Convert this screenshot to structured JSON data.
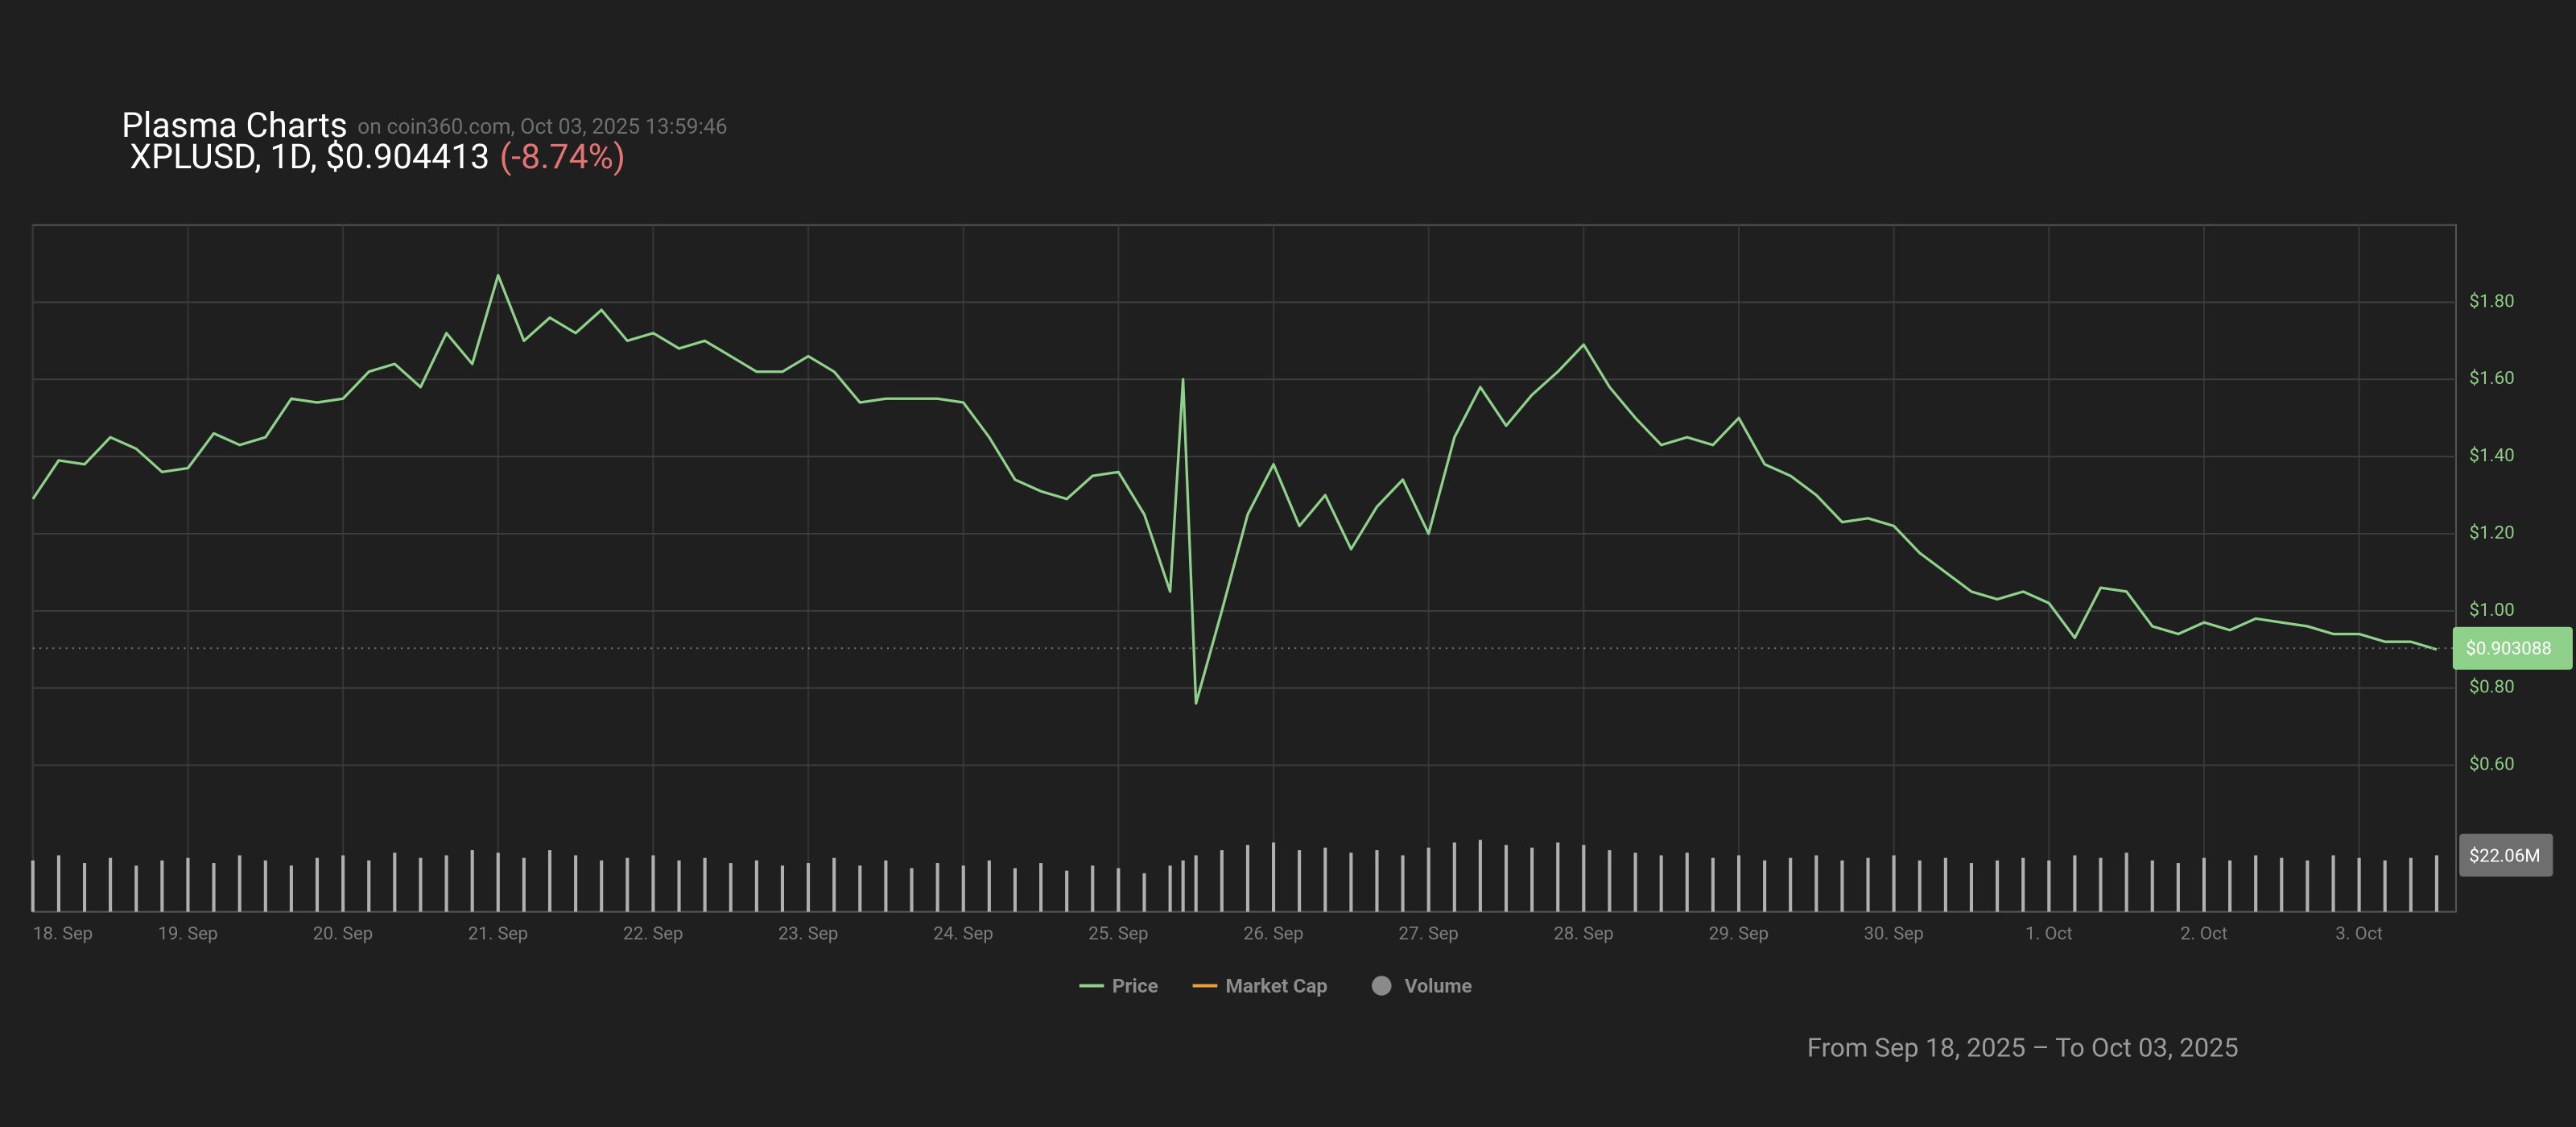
{
  "chart_data": {
    "type": "line",
    "title": "Plasma Charts",
    "source": "on coin360.com, Oct 03, 2025 13:59:46",
    "subtitle": "XPLUSD, 1D, $0.904413",
    "change": "(-8.74%)",
    "footer": "From Sep 18, 2025 – To Oct 03, 2025",
    "x": [
      0,
      4,
      8,
      12,
      16,
      20,
      24,
      28,
      32,
      36,
      40,
      44,
      48,
      52,
      56,
      60,
      64,
      68,
      72,
      76,
      80,
      84,
      88,
      92,
      96,
      100,
      104,
      108,
      112,
      116,
      120,
      124,
      128,
      132,
      136,
      140,
      144,
      148,
      152,
      156,
      160,
      164,
      168,
      172,
      176,
      178,
      180,
      184,
      188,
      192,
      196,
      200,
      204,
      208,
      212,
      216,
      220,
      224,
      228,
      232,
      236,
      240,
      244,
      248,
      252,
      256,
      260,
      264,
      268,
      272,
      276,
      280,
      284,
      288,
      292,
      296,
      300,
      304,
      308,
      312,
      316,
      320,
      324,
      328,
      332,
      336,
      340,
      344,
      348,
      352,
      356,
      360,
      364,
      368,
      372
    ],
    "xlim": [
      0,
      375
    ],
    "xticks": [
      {
        "value": 0,
        "label": "18. Sep"
      },
      {
        "value": 24,
        "label": "19. Sep"
      },
      {
        "value": 48,
        "label": "20. Sep"
      },
      {
        "value": 72,
        "label": "21. Sep"
      },
      {
        "value": 96,
        "label": "22. Sep"
      },
      {
        "value": 120,
        "label": "23. Sep"
      },
      {
        "value": 144,
        "label": "24. Sep"
      },
      {
        "value": 168,
        "label": "25. Sep"
      },
      {
        "value": 192,
        "label": "26. Sep"
      },
      {
        "value": 216,
        "label": "27. Sep"
      },
      {
        "value": 240,
        "label": "28. Sep"
      },
      {
        "value": 264,
        "label": "29. Sep"
      },
      {
        "value": 288,
        "label": "30. Sep"
      },
      {
        "value": 312,
        "label": "1. Oct"
      },
      {
        "value": 336,
        "label": "2. Oct"
      },
      {
        "value": 360,
        "label": "3. Oct"
      }
    ],
    "ylim": [
      0.22,
      2.0
    ],
    "yticks": [
      {
        "value": 0.6,
        "label": "$0.60"
      },
      {
        "value": 0.8,
        "label": "$0.80"
      },
      {
        "value": 1.0,
        "label": "$1.00"
      },
      {
        "value": 1.2,
        "label": "$1.20"
      },
      {
        "value": 1.4,
        "label": "$1.40"
      },
      {
        "value": 1.6,
        "label": "$1.60"
      },
      {
        "value": 1.8,
        "label": "$1.80"
      }
    ],
    "y2lim": [
      0,
      32
    ],
    "grid": true,
    "series": [
      {
        "name": "Price",
        "color": "#8fd18a",
        "values": [
          1.29,
          1.39,
          1.38,
          1.45,
          1.42,
          1.36,
          1.37,
          1.46,
          1.43,
          1.45,
          1.55,
          1.54,
          1.55,
          1.62,
          1.64,
          1.58,
          1.72,
          1.64,
          1.87,
          1.7,
          1.76,
          1.72,
          1.78,
          1.7,
          1.72,
          1.68,
          1.7,
          1.66,
          1.62,
          1.62,
          1.66,
          1.62,
          1.54,
          1.55,
          1.55,
          1.55,
          1.54,
          1.45,
          1.34,
          1.31,
          1.29,
          1.35,
          1.36,
          1.25,
          1.05,
          1.6,
          0.76,
          1.0,
          1.25,
          1.38,
          1.22,
          1.3,
          1.16,
          1.27,
          1.34,
          1.2,
          1.45,
          1.58,
          1.48,
          1.56,
          1.62,
          1.69,
          1.58,
          1.5,
          1.43,
          1.45,
          1.43,
          1.5,
          1.38,
          1.35,
          1.3,
          1.23,
          1.24,
          1.22,
          1.15,
          1.1,
          1.05,
          1.03,
          1.05,
          1.02,
          0.93,
          1.06,
          1.05,
          0.96,
          0.94,
          0.97,
          0.95,
          0.98,
          0.97,
          0.96,
          0.94,
          0.94,
          0.92,
          0.92,
          0.9
        ]
      },
      {
        "name": "Volume",
        "color": "#8a8a8a",
        "axis": "y2",
        "values": [
          20,
          22,
          19,
          21,
          18,
          20,
          21,
          19,
          22,
          20,
          18,
          21,
          22,
          20,
          23,
          21,
          22,
          24,
          23,
          21,
          24,
          22,
          20,
          21,
          22,
          20,
          21,
          19,
          20,
          18,
          19,
          21,
          18,
          20,
          17,
          19,
          18,
          20,
          17,
          19,
          16,
          18,
          17,
          15,
          18,
          20,
          22,
          24,
          26,
          27,
          24,
          25,
          23,
          24,
          22,
          25,
          27,
          28,
          26,
          25,
          27,
          26,
          24,
          23,
          22,
          23,
          21,
          22,
          20,
          21,
          22,
          20,
          21,
          22,
          20,
          21,
          19,
          20,
          21,
          20,
          22,
          21,
          23,
          20,
          19,
          21,
          20,
          22,
          21,
          20,
          22,
          21,
          20,
          21,
          22
        ]
      }
    ],
    "legend_only": [
      {
        "name": "Market Cap",
        "color": "#e9a23b"
      }
    ],
    "price_tag": {
      "value": 0.903088,
      "label": "$0.903088"
    },
    "volume_tag": {
      "value": 22.06,
      "label": "$22.06M"
    }
  }
}
